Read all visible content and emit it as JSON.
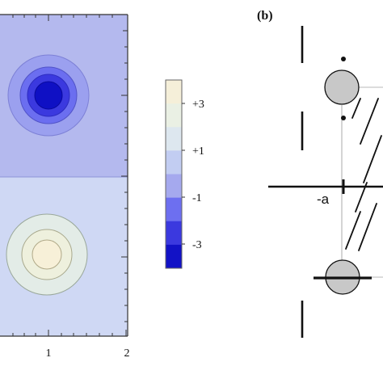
{
  "panel_a": {
    "x_tick_labels": [
      "1",
      "2"
    ],
    "colorbar": {
      "tick_labels": [
        "+3",
        "+1",
        "-1",
        "-3"
      ],
      "levels": [
        {
          "color": "#f5efd9"
        },
        {
          "color": "#eaf0e4"
        },
        {
          "color": "#dde7ef"
        },
        {
          "color": "#c2cdf2"
        },
        {
          "color": "#a5a9ee"
        },
        {
          "color": "#6d6ff0"
        },
        {
          "color": "#3b39df"
        },
        {
          "color": "#1212c6"
        }
      ]
    },
    "top_half": {
      "background": "#b4b9ee",
      "rings": [
        "#9ba0ef",
        "#6b6ef0",
        "#3b39df",
        "#0f10c4"
      ]
    },
    "bottom_half": {
      "background": "#cfd8f4",
      "rings": [
        "#e3ece7",
        "#eef0dd",
        "#f7f0d8"
      ]
    }
  },
  "panel_b": {
    "label": "(b)",
    "point_label": "-a",
    "circle_fill": "#c8c8c8"
  }
}
